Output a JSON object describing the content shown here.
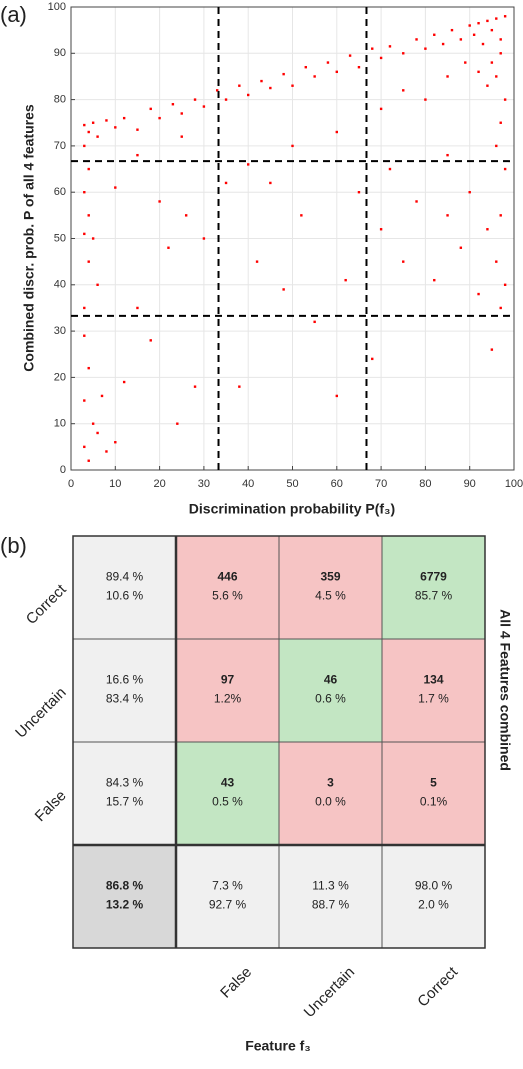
{
  "chart_data": [
    {
      "type": "scatter",
      "panel": "(a)",
      "xlabel": "Discrimination probability P(f₃)",
      "ylabel": "Combined discr. prob. P of all 4 features",
      "xlim": [
        0,
        100
      ],
      "xticks": [
        0,
        10,
        20,
        30,
        40,
        50,
        60,
        70,
        80,
        90,
        100
      ],
      "ylim": [
        0,
        100
      ],
      "yticks": [
        0,
        10,
        20,
        30,
        40,
        50,
        60,
        70,
        80,
        90,
        100
      ],
      "grid": true,
      "color": "#ff0000",
      "vlines": [
        33.3,
        66.7
      ],
      "hlines": [
        33.3,
        66.7
      ],
      "x": [
        3,
        4,
        5,
        6,
        8,
        10,
        12,
        15,
        18,
        20,
        23,
        25,
        28,
        30,
        33,
        35,
        38,
        40,
        43,
        45,
        48,
        50,
        53,
        55,
        58,
        60,
        63,
        65,
        68,
        70,
        72,
        75,
        78,
        80,
        82,
        84,
        86,
        88,
        90,
        91,
        92,
        93,
        94,
        95,
        96,
        97,
        98,
        97,
        95,
        96,
        98,
        97,
        94,
        92,
        89,
        85,
        80,
        75,
        70,
        60,
        3,
        4,
        3,
        4,
        3,
        5,
        4,
        6,
        3,
        3,
        4,
        3,
        5,
        3,
        4,
        6,
        8,
        10,
        7,
        12,
        15,
        18,
        20,
        22,
        24,
        26,
        28,
        30,
        35,
        38,
        42,
        45,
        48,
        52,
        55,
        60,
        62,
        65,
        68,
        70,
        72,
        75,
        78,
        82,
        85,
        88,
        90,
        92,
        94,
        95,
        96,
        97,
        98,
        97,
        98,
        96,
        85,
        50,
        40,
        25,
        15,
        10
      ],
      "y": [
        74.5,
        73,
        75,
        72,
        75.5,
        74,
        76,
        73.5,
        78,
        76,
        79,
        77,
        80,
        78.5,
        82,
        80,
        83,
        81,
        84,
        82.5,
        85.5,
        83,
        87,
        85,
        88,
        86,
        89.5,
        87,
        91,
        89,
        91.5,
        90,
        93,
        91,
        94,
        92,
        95,
        93,
        96,
        94,
        96.5,
        92,
        97,
        95,
        97.5,
        93,
        98,
        90,
        88,
        85,
        80,
        75,
        83,
        86,
        88,
        85,
        80,
        82,
        78,
        73,
        70,
        65,
        60,
        55,
        51,
        50,
        45,
        40,
        35,
        29,
        22,
        15,
        10,
        5,
        2,
        8,
        4,
        6,
        16,
        19,
        35,
        28,
        58,
        48,
        10,
        55,
        18,
        50,
        62,
        18,
        45,
        62,
        39,
        55,
        32,
        16,
        41,
        60,
        24,
        52,
        65,
        45,
        58,
        41,
        55,
        48,
        60,
        38,
        52,
        26,
        45,
        35,
        65,
        55,
        40,
        70,
        68,
        70,
        66,
        72,
        68,
        61
      ]
    },
    {
      "type": "confusion_matrix",
      "panel": "(b)",
      "xlabel": "Feature f₃",
      "ylabel": "All 4 Features combined",
      "rows": [
        "Correct",
        "Uncertain",
        "False"
      ],
      "columns": [
        "False",
        "Uncertain",
        "Correct"
      ],
      "counts": [
        [
          446,
          359,
          6779
        ],
        [
          97,
          46,
          134
        ],
        [
          43,
          3,
          5
        ]
      ],
      "percents": [
        [
          5.6,
          4.5,
          85.7
        ],
        [
          1.2,
          0.6,
          1.7
        ],
        [
          0.5,
          0.0,
          0.1
        ]
      ],
      "percent_labels": [
        [
          "5.6 %",
          "4.5 %",
          "85.7 %"
        ],
        [
          "1.2%",
          "0.6 %",
          "1.7 %"
        ],
        [
          "0.5 %",
          "0.0 %",
          "0.1%"
        ]
      ],
      "row_correct": [
        89.4,
        16.6,
        84.3
      ],
      "row_correct_labels": [
        "89.4 %",
        "16.6 %",
        "84.3 %"
      ],
      "row_wrong": [
        10.6,
        83.4,
        15.7
      ],
      "row_wrong_labels": [
        "10.6 %",
        "83.4 %",
        "15.7 %"
      ],
      "col_correct": [
        7.3,
        11.3,
        98.0
      ],
      "col_correct_labels": [
        "7.3 %",
        "11.3 %",
        "98.0 %"
      ],
      "col_wrong": [
        92.7,
        88.7,
        2.0
      ],
      "col_wrong_labels": [
        "92.7 %",
        "88.7 %",
        "2.0 %"
      ],
      "total_correct": 86.8,
      "total_correct_label": "86.8 %",
      "total_wrong": 13.2,
      "total_wrong_label": "13.2 %",
      "correct_color": "#c3e6c3",
      "wrong_color": "#f6c4c4",
      "summary_color": "#f0f0f0",
      "total_color": "#d8d8d8",
      "correct_text_color": "#3aa845",
      "wrong_text_color": "#e04848"
    }
  ]
}
